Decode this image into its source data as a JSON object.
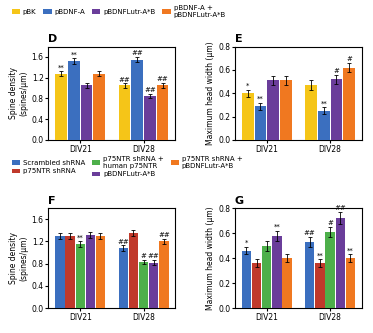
{
  "chart_data": [
    {
      "type": "bar",
      "title": "D",
      "ylabel": "Spine density\n(spines/μm)",
      "categories": [
        "DIV21",
        "DIV28"
      ],
      "series": [
        {
          "name": "pBK",
          "color": "#f5c518",
          "values": [
            1.28,
            1.05
          ],
          "errors": [
            0.05,
            0.04
          ]
        },
        {
          "name": "pBDNF-A",
          "color": "#3b6fbf",
          "values": [
            1.52,
            1.55
          ],
          "errors": [
            0.06,
            0.05
          ]
        },
        {
          "name": "pBDNFLutr-A*B",
          "color": "#6a3d9a",
          "values": [
            1.05,
            0.85
          ],
          "errors": [
            0.05,
            0.04
          ]
        },
        {
          "name": "pBDNF-A +\npBDNFLutr-A*B",
          "color": "#f07820",
          "values": [
            1.28,
            1.05
          ],
          "errors": [
            0.05,
            0.05
          ]
        }
      ],
      "annotations": [
        {
          "text": "**",
          "series": "pBK",
          "category": "DIV21"
        },
        {
          "text": "**",
          "series": "pBDNF-A",
          "category": "DIV21"
        },
        {
          "text": "##",
          "series": "pBK",
          "category": "DIV28"
        },
        {
          "text": "##",
          "series": "pBDNF-A",
          "category": "DIV28"
        },
        {
          "text": "##",
          "series": "pBDNFLutr-A*B",
          "category": "DIV28"
        },
        {
          "text": "##",
          "series": "pBDNF-A +\npBDNFLutr-A*B",
          "category": "DIV28"
        }
      ],
      "ylim": [
        0,
        1.8
      ],
      "yticks": [
        {
          "value": 0,
          "label": "0.0"
        },
        {
          "value": 0.4,
          "label": "0.4"
        },
        {
          "value": 0.8,
          "label": "0.8"
        },
        {
          "value": 1.2,
          "label": "1.2"
        },
        {
          "value": 1.6,
          "label": "1.6"
        }
      ],
      "legend": "upper left"
    },
    {
      "type": "bar",
      "title": "E",
      "ylabel": "Maximum head width (μm)",
      "categories": [
        "DIV21",
        "DIV28"
      ],
      "series": [
        {
          "name": "pBK",
          "color": "#f5c518",
          "values": [
            0.4,
            0.47
          ],
          "errors": [
            0.03,
            0.04
          ]
        },
        {
          "name": "pBDNF-A",
          "color": "#3b6fbf",
          "values": [
            0.29,
            0.25
          ],
          "errors": [
            0.03,
            0.03
          ]
        },
        {
          "name": "pBDNFLutr-A*B",
          "color": "#6a3d9a",
          "values": [
            0.51,
            0.52
          ],
          "errors": [
            0.04,
            0.04
          ]
        },
        {
          "name": "pBDNF-A +\npBDNFLutr-A*B",
          "color": "#f07820",
          "values": [
            0.51,
            0.62
          ],
          "errors": [
            0.04,
            0.04
          ]
        }
      ],
      "annotations": [
        {
          "text": "*",
          "series": "pBK",
          "category": "DIV21"
        },
        {
          "text": "**",
          "series": "pBDNF-A",
          "category": "DIV21"
        },
        {
          "text": "**",
          "series": "pBDNF-A",
          "category": "DIV28"
        },
        {
          "text": "#",
          "series": "pBDNFLutr-A*B",
          "category": "DIV28"
        },
        {
          "text": "#",
          "series": "pBDNF-A +\npBDNFLutr-A*B",
          "category": "DIV28"
        }
      ],
      "ylim": [
        0,
        0.8
      ],
      "yticks": [
        {
          "value": 0,
          "label": "0.0"
        },
        {
          "value": 0.2,
          "label": "0.2"
        },
        {
          "value": 0.4,
          "label": "0.4"
        },
        {
          "value": 0.6,
          "label": "0.6"
        },
        {
          "value": 0.8,
          "label": "0.8"
        }
      ]
    },
    {
      "type": "bar",
      "title": "F",
      "ylabel": "Spine density\n(spines/μm)",
      "categories": [
        "DIV21",
        "DIV28"
      ],
      "series": [
        {
          "name": "Scrambled shRNA",
          "color": "#3b6fbf",
          "values": [
            1.3,
            1.08
          ],
          "errors": [
            0.05,
            0.05
          ]
        },
        {
          "name": "p75NTR shRNA",
          "color": "#c0392b",
          "values": [
            1.3,
            1.35
          ],
          "errors": [
            0.05,
            0.06
          ]
        },
        {
          "name": "p75NTR shRNA +\nhuman p75NTR",
          "color": "#4daf4a",
          "values": [
            1.15,
            0.83
          ],
          "errors": [
            0.05,
            0.04
          ]
        },
        {
          "name": "pBDNFLutr-A*B",
          "color": "#6a3d9a",
          "values": [
            1.32,
            0.82
          ],
          "errors": [
            0.05,
            0.05
          ]
        },
        {
          "name": "p75NTR shRNA +\npBDNFLutr-A*B",
          "color": "#f07820",
          "values": [
            1.3,
            1.2
          ],
          "errors": [
            0.05,
            0.05
          ]
        }
      ],
      "annotations": [
        {
          "text": "**",
          "series": "p75NTR shRNA +\nhuman p75NTR",
          "category": "DIV21"
        },
        {
          "text": "##",
          "series": "Scrambled shRNA",
          "category": "DIV28"
        },
        {
          "text": "#",
          "series": "p75NTR shRNA +\nhuman p75NTR",
          "category": "DIV28"
        },
        {
          "text": "##",
          "series": "pBDNFLutr-A*B",
          "category": "DIV28"
        },
        {
          "text": "##",
          "series": "p75NTR shRNA +\npBDNFLutr-A*B",
          "category": "DIV28"
        }
      ],
      "ylim": [
        0,
        1.8
      ],
      "yticks": [
        {
          "value": 0,
          "label": "0.0"
        },
        {
          "value": 0.4,
          "label": "0.4"
        },
        {
          "value": 0.8,
          "label": "0.8"
        },
        {
          "value": 1.2,
          "label": "1.2"
        },
        {
          "value": 1.6,
          "label": "1.6"
        }
      ],
      "legend": "upper left"
    },
    {
      "type": "bar",
      "title": "G",
      "ylabel": "Maximum head width (μm)",
      "categories": [
        "DIV21",
        "DIV28"
      ],
      "series": [
        {
          "name": "Scrambled shRNA",
          "color": "#3b6fbf",
          "values": [
            0.46,
            0.53
          ],
          "errors": [
            0.03,
            0.04
          ]
        },
        {
          "name": "p75NTR shRNA",
          "color": "#c0392b",
          "values": [
            0.36,
            0.36
          ],
          "errors": [
            0.03,
            0.03
          ]
        },
        {
          "name": "p75NTR shRNA +\nhuman p75NTR",
          "color": "#4daf4a",
          "values": [
            0.5,
            0.61
          ],
          "errors": [
            0.04,
            0.04
          ]
        },
        {
          "name": "pBDNFLutr-A*B",
          "color": "#6a3d9a",
          "values": [
            0.58,
            0.72
          ],
          "errors": [
            0.04,
            0.05
          ]
        },
        {
          "name": "p75NTR shRNA +\npBDNFLutr-A*B",
          "color": "#f07820",
          "values": [
            0.4,
            0.4
          ],
          "errors": [
            0.03,
            0.03
          ]
        }
      ],
      "annotations": [
        {
          "text": "*",
          "series": "Scrambled shRNA",
          "category": "DIV21"
        },
        {
          "text": "**",
          "series": "pBDNFLutr-A*B",
          "category": "DIV21"
        },
        {
          "text": "##",
          "series": "Scrambled shRNA",
          "category": "DIV28"
        },
        {
          "text": "**",
          "series": "p75NTR shRNA",
          "category": "DIV28"
        },
        {
          "text": "#",
          "series": "p75NTR shRNA +\nhuman p75NTR",
          "category": "DIV28"
        },
        {
          "text": "##",
          "series": "pBDNFLutr-A*B",
          "category": "DIV28"
        },
        {
          "text": "**",
          "series": "p75NTR shRNA +\npBDNFLutr-A*B",
          "category": "DIV28"
        }
      ],
      "ylim": [
        0,
        0.8
      ],
      "yticks": [
        {
          "value": 0,
          "label": "0.0"
        },
        {
          "value": 0.2,
          "label": "0.2"
        },
        {
          "value": 0.4,
          "label": "0.4"
        },
        {
          "value": 0.6,
          "label": "0.6"
        },
        {
          "value": 0.8,
          "label": "0.8"
        }
      ]
    }
  ]
}
